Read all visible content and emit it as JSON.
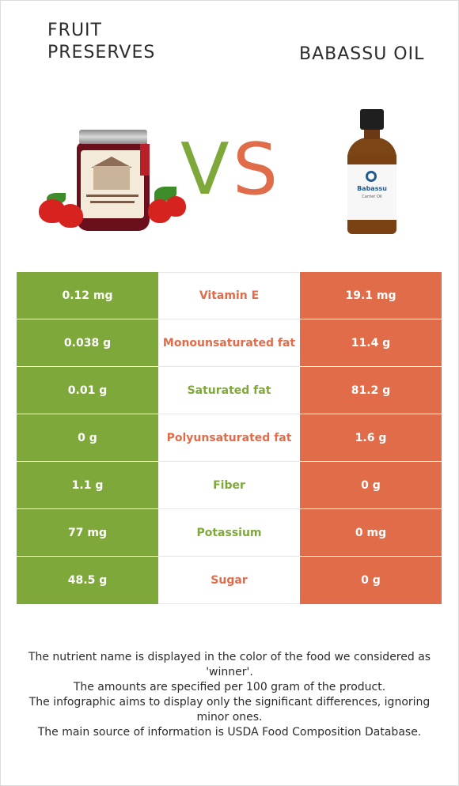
{
  "left_food": {
    "name_line1": "FRUIT",
    "name_line2": "PRESERVES"
  },
  "right_food": {
    "name": "BABASSU OIL",
    "bottle_brand": "Babassu",
    "bottle_sub": "Carrier Oil"
  },
  "vs": {
    "v": "V",
    "s": "S"
  },
  "colors": {
    "left": "#7fa83b",
    "right": "#e06c4a"
  },
  "rows": [
    {
      "left": "0.12 mg",
      "nutrient": "Vitamin E",
      "right": "19.1 mg",
      "winner": "right"
    },
    {
      "left": "0.038 g",
      "nutrient": "Monounsaturated fat",
      "right": "11.4 g",
      "winner": "right"
    },
    {
      "left": "0.01 g",
      "nutrient": "Saturated fat",
      "right": "81.2 g",
      "winner": "left"
    },
    {
      "left": "0 g",
      "nutrient": "Polyunsaturated fat",
      "right": "1.6 g",
      "winner": "right"
    },
    {
      "left": "1.1 g",
      "nutrient": "Fiber",
      "right": "0 g",
      "winner": "left"
    },
    {
      "left": "77 mg",
      "nutrient": "Potassium",
      "right": "0 mg",
      "winner": "left"
    },
    {
      "left": "48.5 g",
      "nutrient": "Sugar",
      "right": "0 g",
      "winner": "right"
    }
  ],
  "footnote": {
    "line1": "The nutrient name is displayed in the color of the food we considered as 'winner'.",
    "line2": "The amounts are specified per 100 gram of the product.",
    "line3": "The infographic aims to display only the significant differences, ignoring minor ones.",
    "line4": "The main source of information is USDA Food Composition Database."
  }
}
